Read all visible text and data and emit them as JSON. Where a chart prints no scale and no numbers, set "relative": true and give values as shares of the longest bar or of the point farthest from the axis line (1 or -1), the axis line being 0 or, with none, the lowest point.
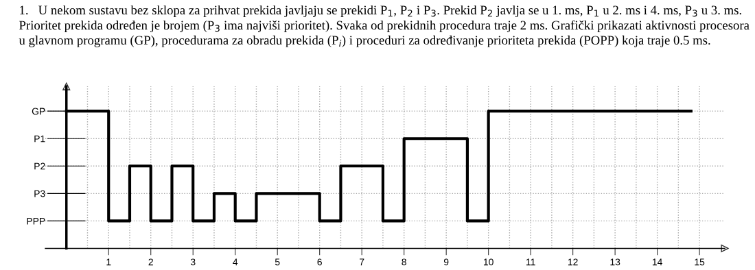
{
  "chart_data": {
    "type": "step",
    "title": "1.   U nekom sustavu bez sklopa za prihvat prekida javljaju se prekidi P$_{1}$, P$_{2}$ i P$_{3}$. Prekid P$_{2}$ javlja se u 1. ms, P$_{1}$ u 2. ms i 4. ms, P$_{3}$ u 3. ms. Prioritet prekida određen je brojem (P$_{3}$ ima najviši prioritet). Svaka od prekidnih procedura traje 2 ms. Grafički prikazati aktivnosti procesora u glavnom programu (GP), procedurama za obradu prekida (P$_{i}$) i proceduri za određivanje prioriteta prekida (POPP) koja traje 0.5 ms.",
    "x": [
      0,
      1,
      1.5,
      2,
      2.5,
      3,
      3.5,
      4,
      4.5,
      6,
      6.5,
      7.5,
      8,
      9.5,
      10,
      14.8
    ],
    "y_categories": [
      "GP",
      "P1",
      "P2",
      "P3",
      "PPP"
    ],
    "relative": true,
    "series": [
      {
        "color": "#000000",
        "values": [
          1,
          0.2,
          0.6,
          0.2,
          0.6,
          0.2,
          0.4,
          0.2,
          0.4,
          0.2,
          0.6,
          0.2,
          0.8,
          0.2,
          1,
          1
        ]
      }
    ],
    "xlim": [
      -0.5,
      15.6
    ],
    "xticks": [
      {
        "value": 0.5,
        "label": null
      },
      1,
      {
        "value": 1.5,
        "label": null
      },
      2,
      {
        "value": 2.5,
        "label": null
      },
      3,
      {
        "value": 3.5,
        "label": null
      },
      4,
      {
        "value": 4.5,
        "label": null
      },
      5,
      {
        "value": 5.5,
        "label": null
      },
      6,
      {
        "value": 6.5,
        "label": null
      },
      7,
      {
        "value": 7.5,
        "label": null
      },
      8,
      {
        "value": 8.5,
        "label": null
      },
      9,
      {
        "value": 9.5,
        "label": null
      },
      10,
      {
        "value": 10.5,
        "label": null
      },
      11,
      {
        "value": 11.5,
        "label": null
      },
      12,
      {
        "value": 12.5,
        "label": null
      },
      13,
      {
        "value": 13.5,
        "label": null
      },
      14,
      {
        "value": 14.5,
        "label": null
      },
      15
    ],
    "grid": true,
    "line_style": "solid",
    "marker": "none"
  }
}
